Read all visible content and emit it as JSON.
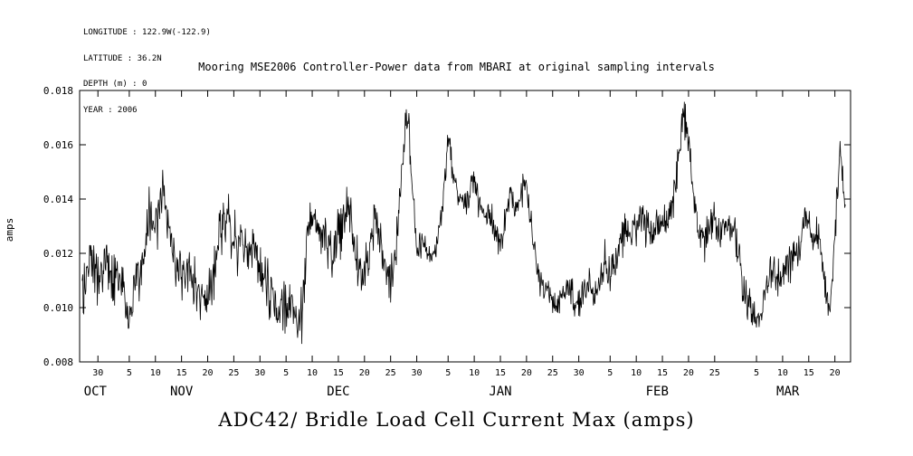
{
  "meta": {
    "longitude": "LONGITUDE : 122.9W(-122.9)",
    "latitude": "LATITUDE : 36.2N",
    "depth": "DEPTH (m) : 0",
    "year": "YEAR : 2006"
  },
  "header": {
    "title": "Mooring MSE2006 Controller-Power data from MBARI at original sampling intervals"
  },
  "footer": {
    "title": "ADC42/ Bridle Load Cell Current Max (amps)"
  },
  "chart_data": {
    "type": "line",
    "title": "Mooring MSE2006 Controller-Power data from MBARI at original sampling intervals",
    "bottom_title": "ADC42/ Bridle Load Cell Current Max (amps)",
    "xlabel": "",
    "ylabel": "amps",
    "ylim": [
      0.008,
      0.018
    ],
    "yticks": [
      0.008,
      0.01,
      0.012,
      0.014,
      0.016,
      0.018
    ],
    "ytick_labels": [
      "0.008",
      "0.010",
      "0.012",
      "0.014",
      "0.016",
      "0.018"
    ],
    "grid": false,
    "legend": false,
    "colors": {
      "line": "#000000",
      "axis": "#000000",
      "background": "#ffffff",
      "text": "#000000"
    },
    "x_unit": "day of month (Oct 2006 - Mar, day index 0 = Oct 27)",
    "x_domain_days": [
      -0.5,
      147
    ],
    "xticks": [
      {
        "day": 3,
        "label": "30"
      },
      {
        "day": 9,
        "label": "5"
      },
      {
        "day": 14,
        "label": "10"
      },
      {
        "day": 19,
        "label": "15"
      },
      {
        "day": 24,
        "label": "20"
      },
      {
        "day": 29,
        "label": "25"
      },
      {
        "day": 34,
        "label": "30"
      },
      {
        "day": 39,
        "label": "5"
      },
      {
        "day": 44,
        "label": "10"
      },
      {
        "day": 49,
        "label": "15"
      },
      {
        "day": 54,
        "label": "20"
      },
      {
        "day": 59,
        "label": "25"
      },
      {
        "day": 64,
        "label": "30"
      },
      {
        "day": 70,
        "label": "5"
      },
      {
        "day": 75,
        "label": "10"
      },
      {
        "day": 80,
        "label": "15"
      },
      {
        "day": 85,
        "label": "20"
      },
      {
        "day": 90,
        "label": "25"
      },
      {
        "day": 95,
        "label": "30"
      },
      {
        "day": 101,
        "label": "5"
      },
      {
        "day": 106,
        "label": "10"
      },
      {
        "day": 111,
        "label": "15"
      },
      {
        "day": 116,
        "label": "20"
      },
      {
        "day": 121,
        "label": "25"
      },
      {
        "day": 129,
        "label": "5"
      },
      {
        "day": 134,
        "label": "10"
      },
      {
        "day": 139,
        "label": "15"
      },
      {
        "day": 144,
        "label": "20"
      }
    ],
    "month_labels": [
      {
        "day": 2.5,
        "label": "OCT"
      },
      {
        "day": 19,
        "label": "NOV"
      },
      {
        "day": 49,
        "label": "DEC"
      },
      {
        "day": 80,
        "label": "JAN"
      },
      {
        "day": 110,
        "label": "FEB"
      },
      {
        "day": 135,
        "label": "MAR"
      }
    ],
    "values_are_daily_envelope": true,
    "values": [
      0.0108,
      0.0113,
      0.0116,
      0.011,
      0.0118,
      0.0112,
      0.0108,
      0.0111,
      0.0104,
      0.0094,
      0.011,
      0.0113,
      0.012,
      0.0136,
      0.0128,
      0.0141,
      0.0136,
      0.0124,
      0.0112,
      0.011,
      0.0116,
      0.011,
      0.0105,
      0.0104,
      0.0106,
      0.0111,
      0.0121,
      0.0136,
      0.013,
      0.0125,
      0.0121,
      0.0123,
      0.0118,
      0.0121,
      0.0114,
      0.0108,
      0.0105,
      0.0102,
      0.01,
      0.0098,
      0.0101,
      0.0098,
      0.0097,
      0.0128,
      0.0134,
      0.0129,
      0.0128,
      0.0124,
      0.012,
      0.0126,
      0.013,
      0.0138,
      0.0124,
      0.0114,
      0.011,
      0.0121,
      0.0134,
      0.0124,
      0.0114,
      0.011,
      0.0121,
      0.0146,
      0.0172,
      0.0152,
      0.0121,
      0.0125,
      0.012,
      0.0118,
      0.0126,
      0.0137,
      0.0163,
      0.0149,
      0.014,
      0.0138,
      0.0141,
      0.0146,
      0.0138,
      0.0132,
      0.0136,
      0.0129,
      0.0122,
      0.0134,
      0.014,
      0.0137,
      0.0142,
      0.0144,
      0.0129,
      0.0114,
      0.0108,
      0.0105,
      0.0102,
      0.01,
      0.0105,
      0.011,
      0.0102,
      0.01,
      0.0105,
      0.011,
      0.0105,
      0.011,
      0.0117,
      0.0112,
      0.0118,
      0.0124,
      0.013,
      0.0127,
      0.013,
      0.0134,
      0.0129,
      0.0127,
      0.0131,
      0.0129,
      0.0134,
      0.0139,
      0.0154,
      0.0172,
      0.0162,
      0.0139,
      0.0127,
      0.0124,
      0.0129,
      0.0134,
      0.0129,
      0.0131,
      0.0129,
      0.0127,
      0.0114,
      0.0104,
      0.0098,
      0.0096,
      0.01,
      0.0109,
      0.0114,
      0.0111,
      0.0114,
      0.0117,
      0.0119,
      0.0121,
      0.0134,
      0.0129,
      0.0124,
      0.0127,
      0.0109,
      0.0097,
      0.0128,
      0.0157,
      0.0138
    ],
    "noise": {
      "amplitude": 0.00065,
      "steps_per_day": 10,
      "seed": 20061027
    },
    "noise_profile": [
      {
        "from": 0,
        "to": 40,
        "scale": 1.3
      },
      {
        "from": 40,
        "to": 63,
        "scale": 1.1
      },
      {
        "from": 63,
        "to": 100,
        "scale": 0.7
      },
      {
        "from": 100,
        "to": 147,
        "scale": 0.85
      }
    ]
  }
}
